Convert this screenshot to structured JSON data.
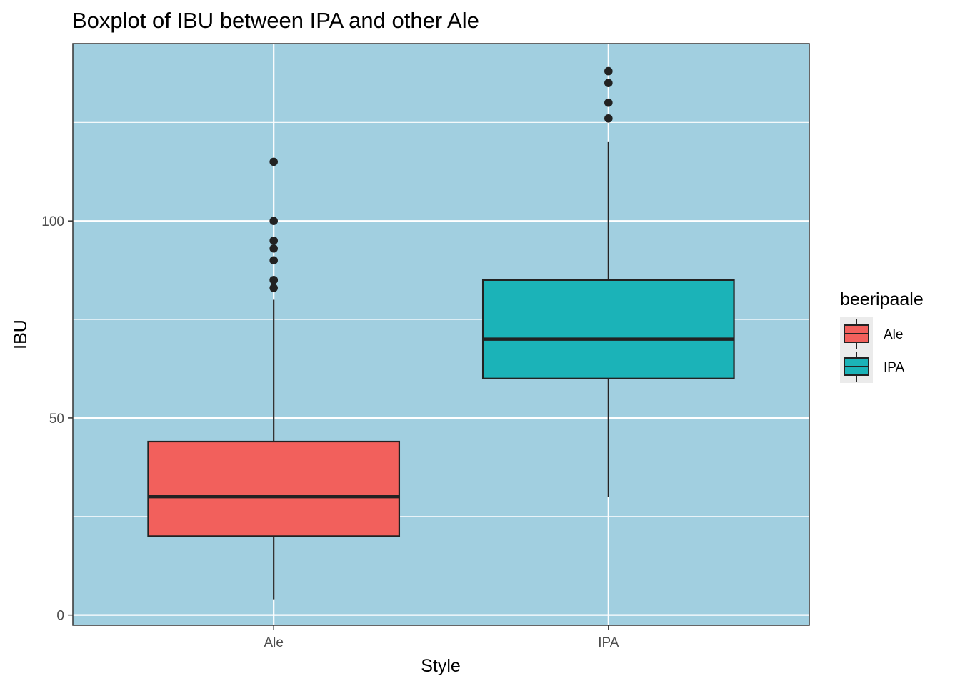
{
  "chart_data": {
    "type": "boxplot",
    "title": "Boxplot of IBU between IPA and other Ale",
    "xlabel": "Style",
    "ylabel": "IBU",
    "categories": [
      "Ale",
      "IPA"
    ],
    "ylim": [
      -2.6,
      145
    ],
    "y_ticks": [
      0,
      50,
      100
    ],
    "y_tick_labels": [
      "0",
      "50",
      "100"
    ],
    "y_minor_grid": [
      25,
      75,
      125
    ],
    "grid": true,
    "panel_background": "#a1cfe0",
    "series": [
      {
        "name": "Ale",
        "color": "#f2605c",
        "whisker_low": 4,
        "q1": 20,
        "median": 30,
        "q3": 44,
        "whisker_high": 80,
        "outliers": [
          83,
          85,
          85,
          90,
          93,
          95,
          100,
          115
        ]
      },
      {
        "name": "IPA",
        "color": "#1bb3b8",
        "whisker_low": 30,
        "q1": 60,
        "median": 70,
        "q3": 85,
        "whisker_high": 120,
        "outliers": [
          126,
          130,
          135,
          138
        ]
      }
    ],
    "legend": {
      "title": "beeripaale",
      "position": "right",
      "entries": [
        "Ale",
        "IPA"
      ]
    }
  }
}
